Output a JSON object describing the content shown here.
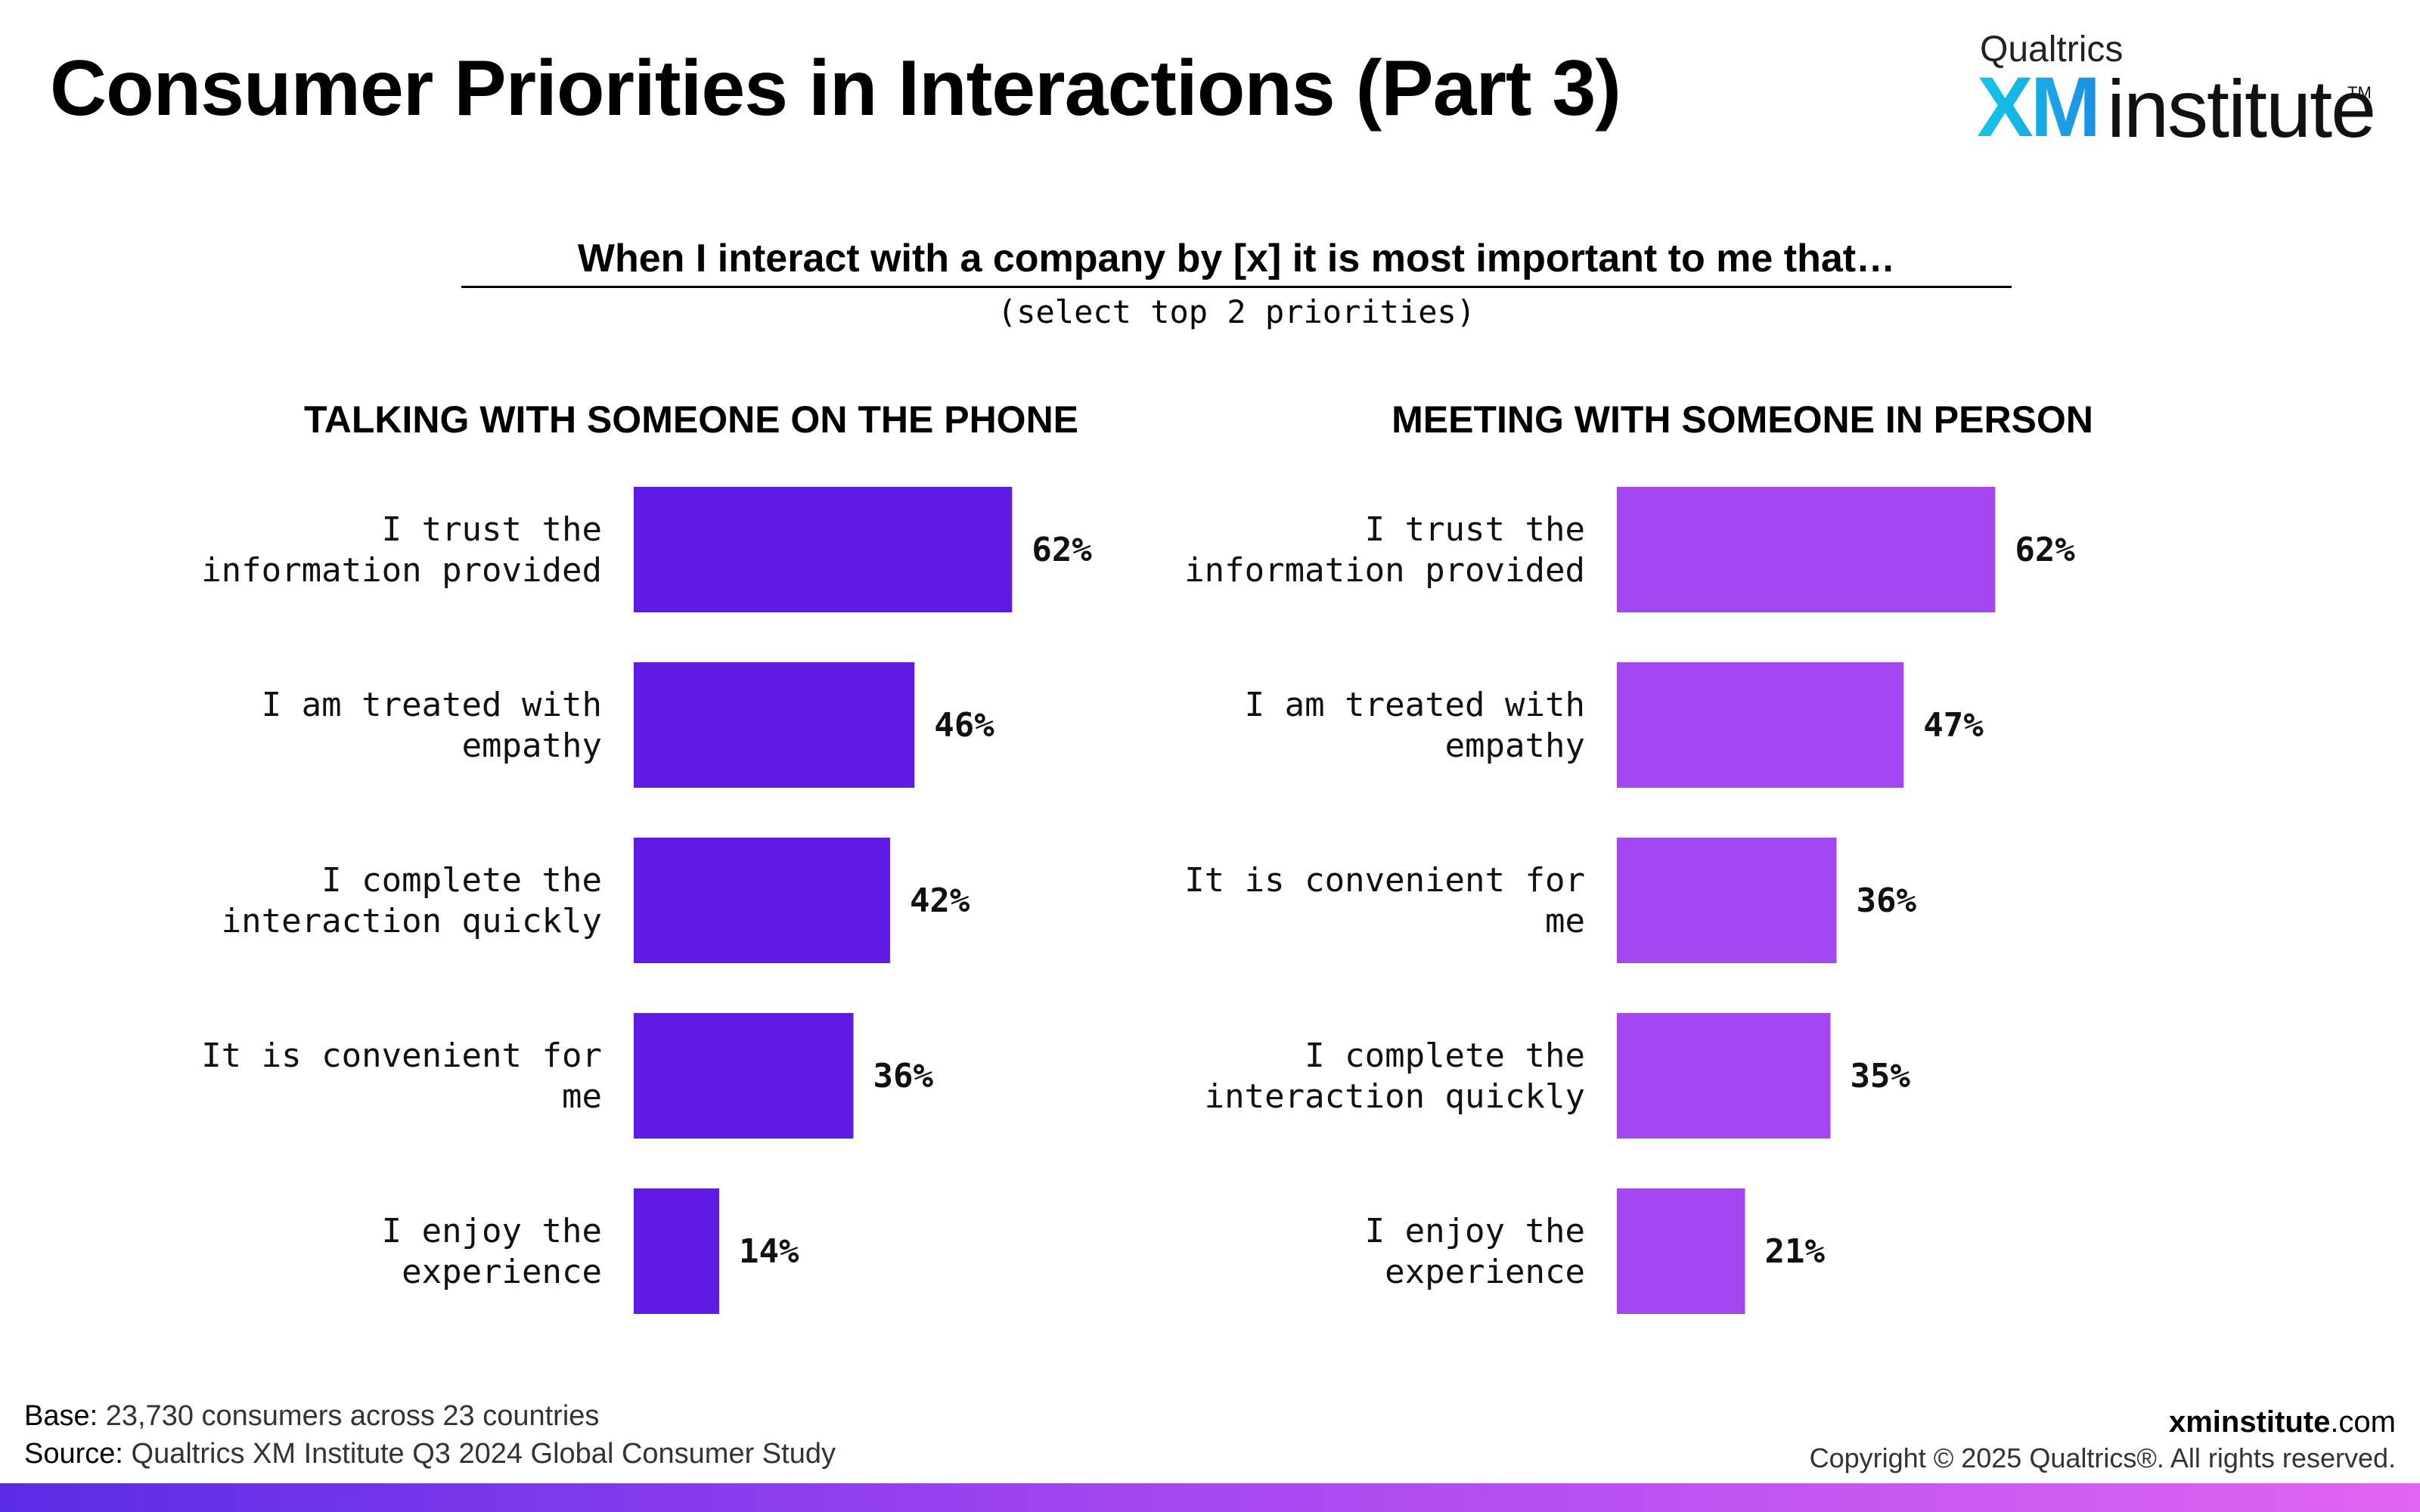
{
  "header": {
    "title": "Consumer Priorities in Interactions (Part 3)",
    "logo": {
      "top": "Qualtrics",
      "xm": "XM",
      "word": "institute",
      "tm": "TM"
    }
  },
  "question": {
    "text": "When I interact with a company by [x] it is most important to me that…",
    "note": "(select top 2 priorities)"
  },
  "chart_data": [
    {
      "type": "bar",
      "orientation": "horizontal",
      "title": "TALKING WITH SOMEONE ON THE PHONE",
      "categories": [
        "I trust the information provided",
        "I am treated with empathy",
        "I complete the interaction quickly",
        "It is convenient for me",
        "I enjoy the experience"
      ],
      "label_lines": [
        [
          "I trust the",
          "information provided"
        ],
        [
          "I am treated with",
          "empathy"
        ],
        [
          "I complete the",
          "interaction quickly"
        ],
        [
          "It is convenient for",
          "me"
        ],
        [
          "I enjoy the",
          "experience"
        ]
      ],
      "values": [
        62,
        46,
        42,
        36,
        14
      ],
      "value_labels": [
        "62%",
        "46%",
        "42%",
        "36%",
        "14%"
      ],
      "color": "#5f1be3",
      "xlim": [
        0,
        100
      ],
      "grid": false
    },
    {
      "type": "bar",
      "orientation": "horizontal",
      "title": "MEETING WITH SOMEONE IN PERSON",
      "categories": [
        "I trust the information provided",
        "I am treated with empathy",
        "It is convenient for me",
        "I complete the interaction quickly",
        "I enjoy the experience"
      ],
      "label_lines": [
        [
          "I trust the",
          "information provided"
        ],
        [
          "I am treated with",
          "empathy"
        ],
        [
          "It is convenient for",
          "me"
        ],
        [
          "I complete the",
          "interaction quickly"
        ],
        [
          "I enjoy the",
          "experience"
        ]
      ],
      "values": [
        62,
        47,
        36,
        35,
        21
      ],
      "value_labels": [
        "62%",
        "47%",
        "36%",
        "35%",
        "21%"
      ],
      "color": "#a247f2",
      "xlim": [
        0,
        100
      ],
      "grid": false
    }
  ],
  "footer": {
    "base_label": "Base:",
    "base_value": "23,730 consumers across 23 countries",
    "source_label": "Source:",
    "source_value": "Qualtrics XM Institute Q3 2024 Global Consumer Study",
    "site_bold": "xminstitute",
    "site_rest": ".com",
    "copyright": "Copyright © 2025 Qualtrics®. All rights reserved."
  }
}
